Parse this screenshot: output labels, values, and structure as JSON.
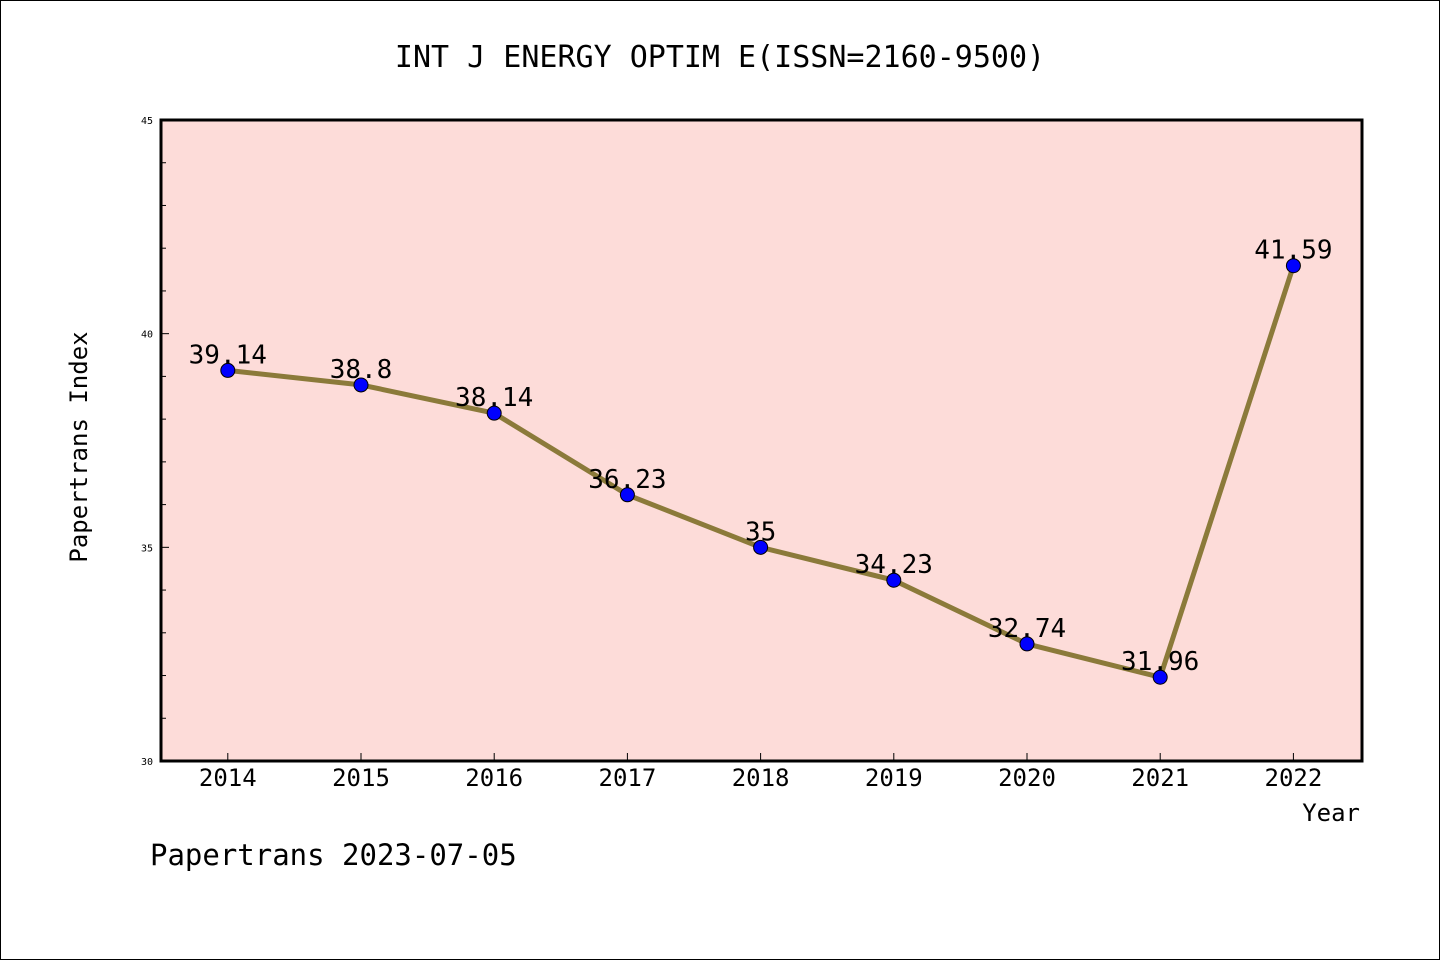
{
  "chart_data": {
    "type": "line",
    "title": "INT J ENERGY OPTIM E(ISSN=2160-9500)",
    "xlabel": "Year",
    "ylabel": "Papertrans Index",
    "categories": [
      "2014",
      "2015",
      "2016",
      "2017",
      "2018",
      "2019",
      "2020",
      "2021",
      "2022"
    ],
    "values": [
      39.14,
      38.8,
      38.14,
      36.23,
      35,
      34.23,
      32.74,
      31.96,
      41.59
    ],
    "data_labels": [
      "39.14",
      "38.8",
      "38.14",
      "36.23",
      "35",
      "34.23",
      "32.74",
      "31.96",
      "41.59"
    ],
    "ylim": [
      30,
      45
    ],
    "yticks": [
      "30",
      "35",
      "40",
      "45"
    ],
    "grid": false,
    "line_color": "#8b7a3a",
    "marker_color": "#0000ff",
    "plot_background": "#fddcd9"
  },
  "footer": {
    "watermark": "Papertrans 2023-07-05"
  }
}
